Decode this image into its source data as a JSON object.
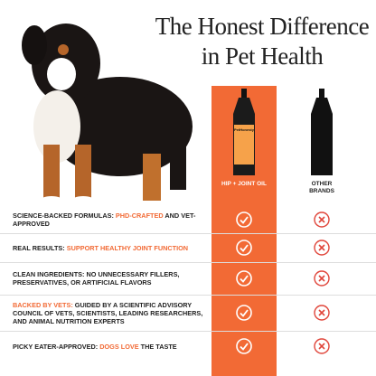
{
  "header": {
    "title_line_1": "The Honest Difference",
    "title_line_2": "in Pet Health"
  },
  "columns": {
    "product": "HIP + JOINT OIL",
    "other": "OTHER BRANDS"
  },
  "bottle_label": "PetHonesty",
  "rows": [
    {
      "segments": [
        {
          "text": "SCIENCE-BACKED FORMULAS: ",
          "highlight": false
        },
        {
          "text": "PHD-CRAFTED",
          "highlight": true
        },
        {
          "text": " AND VET-APPROVED",
          "highlight": false
        }
      ]
    },
    {
      "segments": [
        {
          "text": "REAL RESULTS: ",
          "highlight": false
        },
        {
          "text": "SUPPORT HEALTHY JOINT FUNCTION",
          "highlight": true
        }
      ]
    },
    {
      "segments": [
        {
          "text": "CLEAN INGREDIENTS: NO UNNECESSARY FILLERS, PRESERVATIVES, OR ARTIFICIAL FLAVORS",
          "highlight": false
        }
      ]
    },
    {
      "segments": [
        {
          "text": "BACKED BY VETS:",
          "highlight": true
        },
        {
          "text": " GUIDED BY A SCIENTIFIC ADVISORY COUNCIL OF VETS, SCIENTISTS, LEADING RESEARCHERS, AND ANIMAL NUTRITION EXPERTS",
          "highlight": false
        }
      ]
    },
    {
      "segments": [
        {
          "text": "PICKY EATER-APPROVED: ",
          "highlight": false
        },
        {
          "text": "DOGS LOVE",
          "highlight": true
        },
        {
          "text": " THE TASTE",
          "highlight": false
        }
      ]
    }
  ]
}
